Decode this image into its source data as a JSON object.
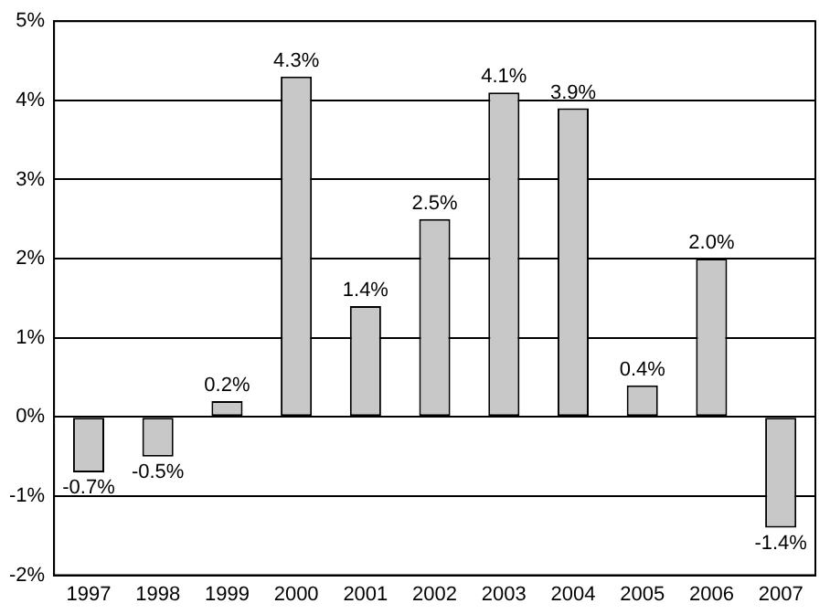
{
  "chart_data": {
    "type": "bar",
    "categories": [
      "1997",
      "1998",
      "1999",
      "2000",
      "2001",
      "2002",
      "2003",
      "2004",
      "2005",
      "2006",
      "2007"
    ],
    "values": [
      -0.7,
      -0.5,
      0.2,
      4.3,
      1.4,
      2.5,
      4.1,
      3.9,
      0.4,
      2.0,
      -1.4
    ],
    "value_labels": [
      "-0.7%",
      "-0.5%",
      "0.2%",
      "4.3%",
      "1.4%",
      "2.5%",
      "4.1%",
      "3.9%",
      "0.4%",
      "2.0%",
      "-1.4%"
    ],
    "color": "#c8c8c8",
    "ylim": [
      -2,
      5
    ],
    "yticks": [
      {
        "value": -2,
        "label": "-2%"
      },
      {
        "value": -1,
        "label": "-1%"
      },
      {
        "value": 0,
        "label": "0%"
      },
      {
        "value": 1,
        "label": "1%"
      },
      {
        "value": 2,
        "label": "2%"
      },
      {
        "value": 3,
        "label": "3%"
      },
      {
        "value": 4,
        "label": "4%"
      },
      {
        "value": 5,
        "label": "5%"
      }
    ],
    "grid": "y"
  }
}
